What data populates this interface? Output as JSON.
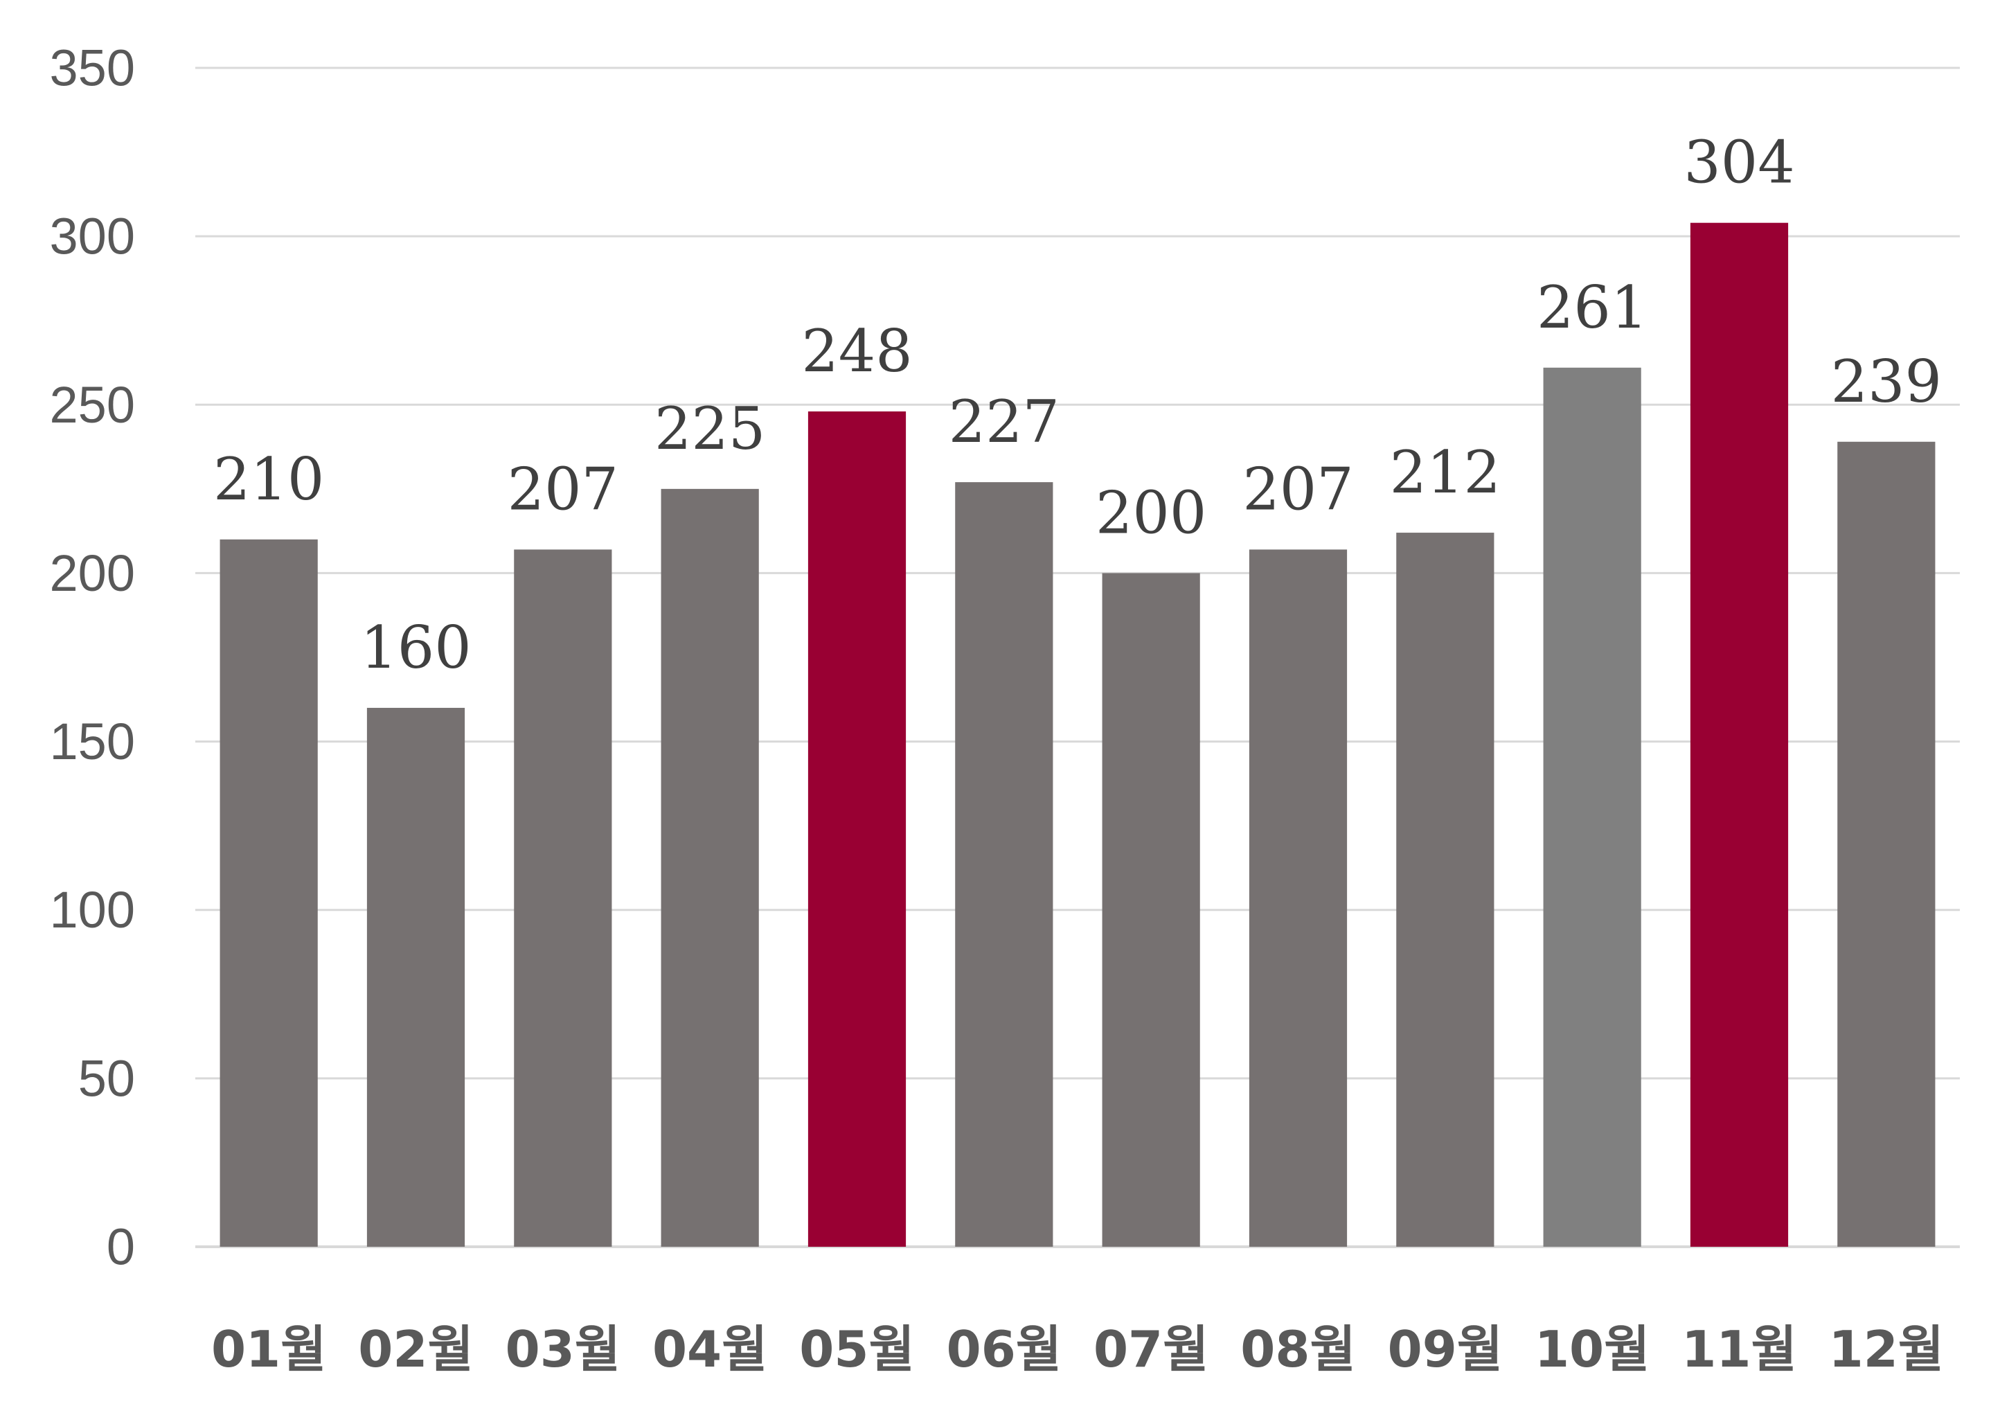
{
  "chart_data": {
    "type": "bar",
    "title": "",
    "xlabel": "",
    "ylabel": "",
    "categories": [
      "01월",
      "02월",
      "03월",
      "04월",
      "05월",
      "06월",
      "07월",
      "08월",
      "09월",
      "10월",
      "11월",
      "12월"
    ],
    "values": [
      210,
      160,
      207,
      225,
      248,
      227,
      200,
      207,
      212,
      261,
      304,
      239
    ],
    "data_labels": [
      "210",
      "160",
      "207",
      "225",
      "248",
      "227",
      "200",
      "207",
      "212",
      "261",
      "304",
      "239"
    ],
    "bar_colors": [
      "#767171",
      "#767171",
      "#767171",
      "#767171",
      "#990033",
      "#767171",
      "#767171",
      "#767171",
      "#767171",
      "#808080",
      "#990033",
      "#767171"
    ],
    "label_colors": [
      "#404040",
      "#404040",
      "#404040",
      "#404040",
      "#7f0000",
      "#404040",
      "#404040",
      "#404040",
      "#404040",
      "#404040",
      "#7f0000",
      "#404040"
    ],
    "ylim": [
      0,
      350
    ],
    "yticks": [
      0,
      50,
      100,
      150,
      200,
      250,
      300,
      350
    ],
    "ytick_labels": [
      "0",
      "50",
      "100",
      "150",
      "200",
      "250",
      "300",
      "350"
    ],
    "grid": true,
    "legend": "none",
    "colors": {
      "grid": "#d9d9d9",
      "axis_text": "#595959"
    }
  }
}
